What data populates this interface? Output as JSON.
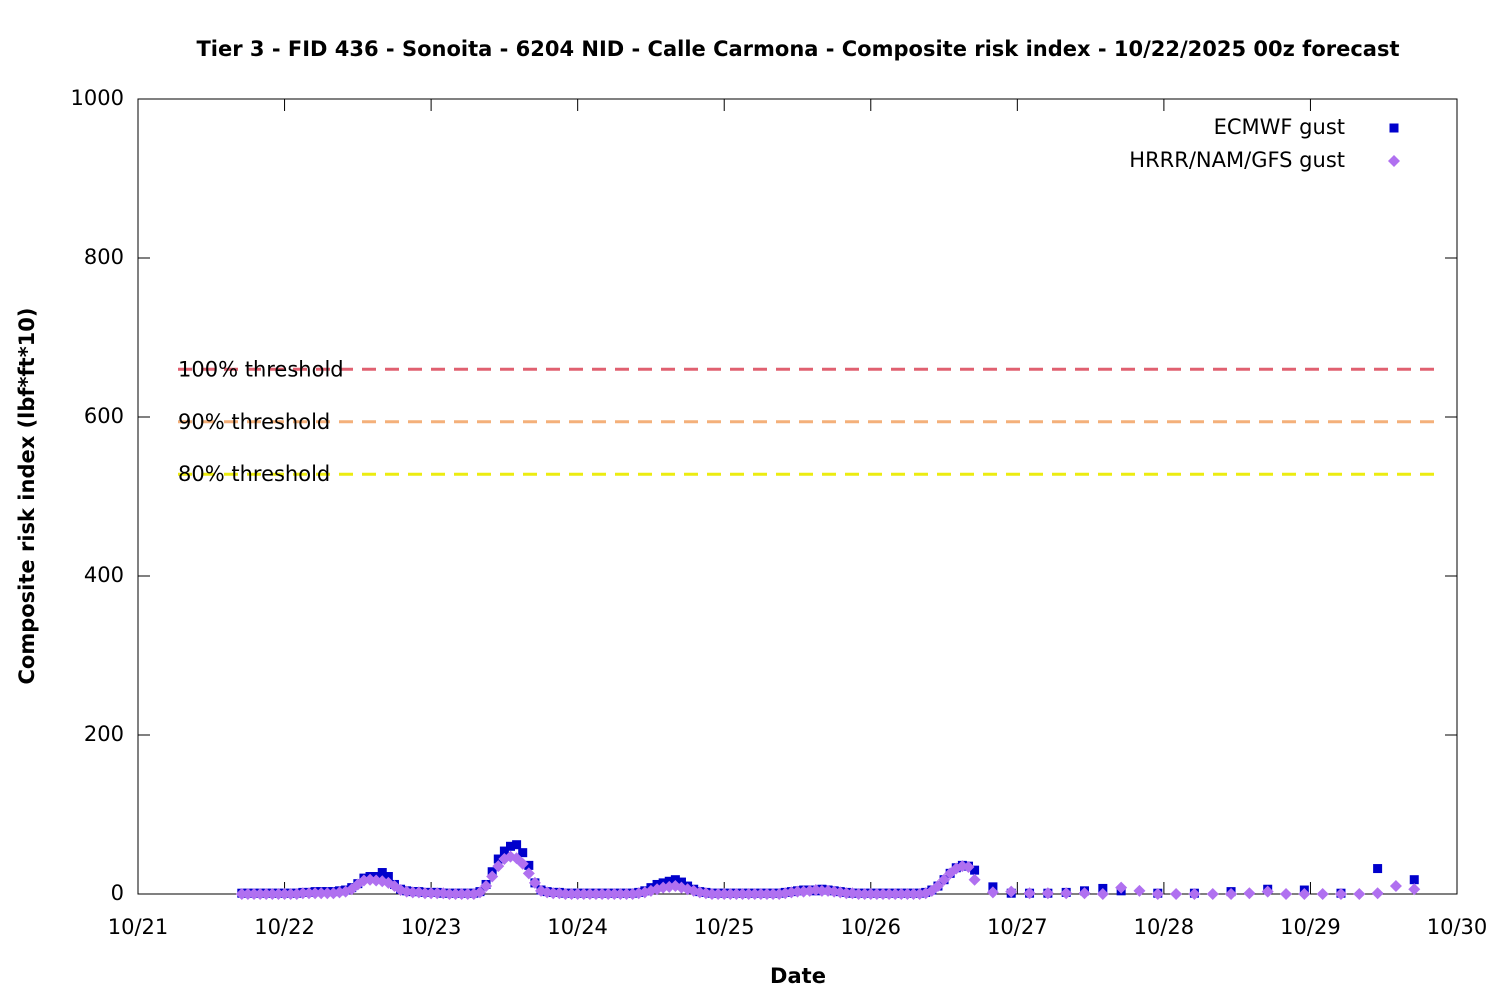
{
  "chart_data": {
    "type": "scatter",
    "title": "Tier 3 - FID 436 - Sonoita - 6204 NID - Calle Carmona - Composite risk index - 10/22/2025 00z forecast",
    "x_label": "Date",
    "y_label": "Composite risk index (lbf*ft*10)",
    "xlim": [
      0,
      216
    ],
    "xticks": [
      {
        "value": 0,
        "label": "10/21"
      },
      {
        "value": 24,
        "label": "10/22"
      },
      {
        "value": 48,
        "label": "10/23"
      },
      {
        "value": 72,
        "label": "10/24"
      },
      {
        "value": 96,
        "label": "10/25"
      },
      {
        "value": 120,
        "label": "10/26"
      },
      {
        "value": 144,
        "label": "10/27"
      },
      {
        "value": 168,
        "label": "10/28"
      },
      {
        "value": 192,
        "label": "10/29"
      },
      {
        "value": 216,
        "label": "10/30"
      }
    ],
    "ylim": [
      0,
      1000
    ],
    "yticks": [
      0,
      200,
      400,
      600,
      800,
      1000
    ],
    "legend": "top-right",
    "thresholds": [
      {
        "label": "100% threshold",
        "value": 660,
        "color": "#e06070"
      },
      {
        "label": "90% threshold",
        "value": 594,
        "color": "#f4b07a"
      },
      {
        "label": "80% threshold",
        "value": 528,
        "color": "#ecec10"
      }
    ],
    "series": [
      {
        "name": "ECMWF gust",
        "color": "#0000cc",
        "marker": "square",
        "x": [
          17,
          18,
          19,
          20,
          21,
          22,
          23,
          24,
          25,
          26,
          27,
          28,
          29,
          30,
          31,
          32,
          33,
          34,
          35,
          36,
          37,
          38,
          39,
          40,
          41,
          42,
          43,
          44,
          45,
          46,
          47,
          48,
          49,
          50,
          51,
          52,
          53,
          54,
          55,
          56,
          57,
          58,
          59,
          60,
          61,
          62,
          63,
          64,
          65,
          66,
          67,
          68,
          69,
          70,
          71,
          72,
          73,
          74,
          75,
          76,
          77,
          78,
          79,
          80,
          81,
          82,
          83,
          84,
          85,
          86,
          87,
          88,
          89,
          90,
          91,
          92,
          93,
          94,
          95,
          96,
          97,
          98,
          99,
          100,
          101,
          102,
          103,
          104,
          105,
          106,
          107,
          108,
          109,
          110,
          111,
          112,
          113,
          114,
          115,
          116,
          117,
          118,
          119,
          120,
          121,
          122,
          123,
          124,
          125,
          126,
          127,
          128,
          129,
          130,
          131,
          132,
          133,
          134,
          135,
          136,
          137,
          140,
          143,
          146,
          149,
          152,
          155,
          158,
          161,
          167,
          173,
          179,
          185,
          191,
          197,
          203,
          209
        ],
        "values": [
          1,
          1,
          1,
          1,
          1,
          1,
          1,
          1,
          1,
          1,
          2,
          2,
          3,
          3,
          3,
          3,
          4,
          5,
          8,
          13,
          20,
          22,
          22,
          27,
          22,
          12,
          6,
          4,
          3,
          3,
          2,
          2,
          2,
          1,
          1,
          1,
          1,
          1,
          1,
          3,
          12,
          28,
          44,
          54,
          60,
          62,
          52,
          36,
          14,
          5,
          3,
          2,
          2,
          1,
          1,
          1,
          1,
          1,
          1,
          1,
          1,
          1,
          1,
          1,
          1,
          2,
          4,
          8,
          12,
          14,
          16,
          18,
          15,
          10,
          6,
          3,
          2,
          1,
          1,
          1,
          1,
          1,
          1,
          1,
          1,
          1,
          1,
          1,
          1,
          2,
          3,
          4,
          5,
          5,
          4,
          6,
          5,
          4,
          3,
          2,
          1,
          1,
          1,
          1,
          1,
          1,
          1,
          1,
          1,
          1,
          1,
          1,
          2,
          5,
          10,
          18,
          26,
          33,
          36,
          35,
          30,
          9,
          1,
          1,
          1,
          2,
          4,
          7,
          4,
          1,
          1,
          3,
          6,
          5,
          1,
          32,
          18
        ]
      },
      {
        "name": "HRRR/NAM/GFS gust",
        "color": "#b070f0",
        "marker": "diamond",
        "x": [
          17,
          18,
          19,
          20,
          21,
          22,
          23,
          24,
          25,
          26,
          27,
          28,
          29,
          30,
          31,
          32,
          33,
          34,
          35,
          36,
          37,
          38,
          39,
          40,
          41,
          42,
          43,
          44,
          45,
          46,
          47,
          48,
          49,
          50,
          51,
          52,
          53,
          54,
          55,
          56,
          57,
          58,
          59,
          60,
          61,
          62,
          63,
          64,
          65,
          66,
          67,
          68,
          69,
          70,
          71,
          72,
          73,
          74,
          75,
          76,
          77,
          78,
          79,
          80,
          81,
          82,
          83,
          84,
          85,
          86,
          87,
          88,
          89,
          90,
          91,
          92,
          93,
          94,
          95,
          96,
          97,
          98,
          99,
          100,
          101,
          102,
          103,
          104,
          105,
          106,
          107,
          108,
          109,
          110,
          111,
          112,
          113,
          114,
          115,
          116,
          117,
          118,
          119,
          120,
          121,
          122,
          123,
          124,
          125,
          126,
          127,
          128,
          129,
          130,
          131,
          132,
          133,
          134,
          135,
          136,
          137,
          140,
          143,
          146,
          149,
          152,
          155,
          158,
          161,
          164,
          167,
          170,
          173,
          176,
          179,
          182,
          185,
          188,
          191,
          194,
          197,
          200,
          203,
          206,
          209
        ],
        "values": [
          0,
          0,
          0,
          0,
          0,
          0,
          0,
          0,
          0,
          0,
          1,
          1,
          1,
          1,
          1,
          1,
          2,
          3,
          6,
          12,
          17,
          18,
          17,
          16,
          14,
          10,
          5,
          3,
          2,
          2,
          1,
          1,
          1,
          1,
          0,
          0,
          0,
          0,
          0,
          2,
          10,
          22,
          35,
          44,
          47,
          45,
          38,
          26,
          14,
          4,
          2,
          1,
          1,
          0,
          0,
          0,
          0,
          0,
          0,
          0,
          0,
          0,
          0,
          0,
          0,
          1,
          2,
          4,
          6,
          8,
          9,
          10,
          8,
          6,
          4,
          2,
          1,
          0,
          0,
          0,
          0,
          0,
          0,
          0,
          0,
          0,
          0,
          0,
          0,
          1,
          2,
          3,
          3,
          4,
          5,
          4,
          4,
          3,
          2,
          1,
          1,
          0,
          0,
          0,
          0,
          0,
          0,
          0,
          0,
          0,
          0,
          0,
          1,
          4,
          10,
          18,
          26,
          32,
          35,
          34,
          18,
          2,
          3,
          1,
          1,
          1,
          1,
          0,
          8,
          4,
          0,
          0,
          0,
          0,
          0,
          1,
          3,
          0,
          0,
          0,
          0,
          0,
          1,
          10,
          6
        ]
      }
    ]
  }
}
